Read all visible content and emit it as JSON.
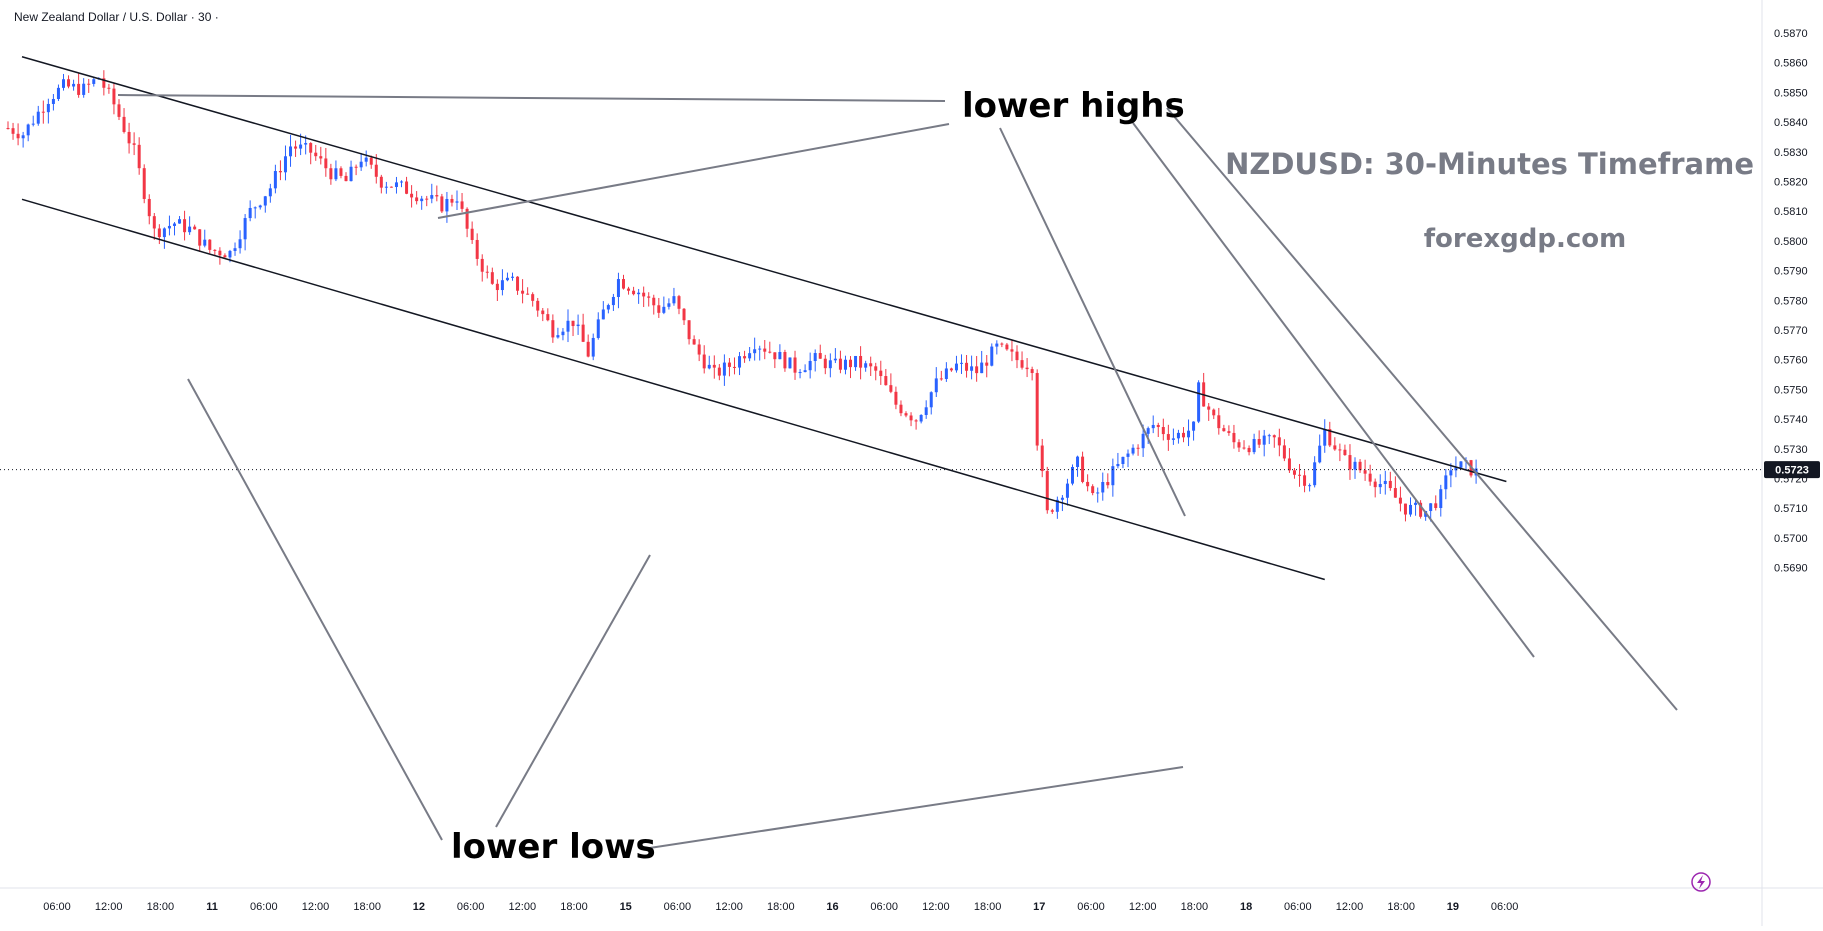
{
  "header": {
    "symbol_title": "New Zealand Dollar / U.S. Dollar · 30 ·"
  },
  "annotations": {
    "lower_highs": "lower highs",
    "lower_lows": "lower lows",
    "watermark_title": "NZDUSD: 30-Minutes Timeframe",
    "watermark_site": "forexgdp.com"
  },
  "price_badge": "0.5723",
  "colors": {
    "up": "#2962ff",
    "down": "#f23645",
    "trendline": "#131722",
    "annotation_line": "#787b86",
    "watermark": "#787b86"
  },
  "chart_data": {
    "type": "candlestick",
    "title": "New Zealand Dollar / U.S. Dollar · 30 ·",
    "y_range": [
      0.5685,
      0.5875
    ],
    "y_ticks": [
      "0.5870",
      "0.5860",
      "0.5850",
      "0.5840",
      "0.5830",
      "0.5820",
      "0.5810",
      "0.5800",
      "0.5790",
      "0.5780",
      "0.5770",
      "0.5760",
      "0.5750",
      "0.5740",
      "0.5730",
      "0.5720",
      "0.5710",
      "0.5700",
      "0.5690"
    ],
    "x_ticks": [
      "06:00",
      "12:00",
      "18:00",
      "11",
      "06:00",
      "12:00",
      "18:00",
      "12",
      "06:00",
      "12:00",
      "18:00",
      "15",
      "06:00",
      "12:00",
      "18:00",
      "16",
      "06:00",
      "12:00",
      "18:00",
      "17",
      "06:00",
      "12:00",
      "18:00",
      "18",
      "06:00",
      "12:00",
      "18:00",
      "19",
      "06:00"
    ],
    "last_price": 0.5723,
    "close_path": [
      {
        "t": 0,
        "p": 0.5838
      },
      {
        "t": 3,
        "p": 0.5836
      },
      {
        "t": 8,
        "p": 0.5848
      },
      {
        "t": 11,
        "p": 0.5852
      },
      {
        "t": 15,
        "p": 0.5851
      },
      {
        "t": 18,
        "p": 0.5855
      },
      {
        "t": 21,
        "p": 0.5846
      },
      {
        "t": 25,
        "p": 0.583
      },
      {
        "t": 29,
        "p": 0.5803
      },
      {
        "t": 33,
        "p": 0.5806
      },
      {
        "t": 36,
        "p": 0.5804
      },
      {
        "t": 40,
        "p": 0.5797
      },
      {
        "t": 44,
        "p": 0.5796
      },
      {
        "t": 48,
        "p": 0.581
      },
      {
        "t": 52,
        "p": 0.5818
      },
      {
        "t": 56,
        "p": 0.5832
      },
      {
        "t": 60,
        "p": 0.583
      },
      {
        "t": 64,
        "p": 0.5823
      },
      {
        "t": 67,
        "p": 0.582
      },
      {
        "t": 70,
        "p": 0.5828
      },
      {
        "t": 74,
        "p": 0.582
      },
      {
        "t": 78,
        "p": 0.5818
      },
      {
        "t": 82,
        "p": 0.5815
      },
      {
        "t": 86,
        "p": 0.5812
      },
      {
        "t": 89,
        "p": 0.5815
      },
      {
        "t": 92,
        "p": 0.5798
      },
      {
        "t": 96,
        "p": 0.5785
      },
      {
        "t": 100,
        "p": 0.5786
      },
      {
        "t": 104,
        "p": 0.578
      },
      {
        "t": 108,
        "p": 0.577
      },
      {
        "t": 112,
        "p": 0.5773
      },
      {
        "t": 115,
        "p": 0.5762
      },
      {
        "t": 118,
        "p": 0.5776
      },
      {
        "t": 121,
        "p": 0.5787
      },
      {
        "t": 125,
        "p": 0.5783
      },
      {
        "t": 129,
        "p": 0.5777
      },
      {
        "t": 132,
        "p": 0.578
      },
      {
        "t": 136,
        "p": 0.5764
      },
      {
        "t": 140,
        "p": 0.5755
      },
      {
        "t": 144,
        "p": 0.5759
      },
      {
        "t": 148,
        "p": 0.5766
      },
      {
        "t": 152,
        "p": 0.5762
      },
      {
        "t": 156,
        "p": 0.5757
      },
      {
        "t": 160,
        "p": 0.576
      },
      {
        "t": 164,
        "p": 0.5758
      },
      {
        "t": 168,
        "p": 0.5759
      },
      {
        "t": 172,
        "p": 0.5756
      },
      {
        "t": 176,
        "p": 0.5745
      },
      {
        "t": 180,
        "p": 0.574
      },
      {
        "t": 184,
        "p": 0.5752
      },
      {
        "t": 188,
        "p": 0.5758
      },
      {
        "t": 192,
        "p": 0.5756
      },
      {
        "t": 196,
        "p": 0.5764
      },
      {
        "t": 200,
        "p": 0.576
      },
      {
        "t": 203,
        "p": 0.5758
      },
      {
        "t": 204,
        "p": 0.5733
      },
      {
        "t": 206,
        "p": 0.5708
      },
      {
        "t": 209,
        "p": 0.5716
      },
      {
        "t": 212,
        "p": 0.5725
      },
      {
        "t": 215,
        "p": 0.5713
      },
      {
        "t": 219,
        "p": 0.5722
      },
      {
        "t": 223,
        "p": 0.573
      },
      {
        "t": 227,
        "p": 0.5738
      },
      {
        "t": 231,
        "p": 0.5734
      },
      {
        "t": 235,
        "p": 0.5737
      },
      {
        "t": 236,
        "p": 0.575
      },
      {
        "t": 239,
        "p": 0.574
      },
      {
        "t": 243,
        "p": 0.5732
      },
      {
        "t": 247,
        "p": 0.5731
      },
      {
        "t": 251,
        "p": 0.5733
      },
      {
        "t": 255,
        "p": 0.5722
      },
      {
        "t": 258,
        "p": 0.5719
      },
      {
        "t": 261,
        "p": 0.5736
      },
      {
        "t": 265,
        "p": 0.5726
      },
      {
        "t": 269,
        "p": 0.5722
      },
      {
        "t": 273,
        "p": 0.5717
      },
      {
        "t": 277,
        "p": 0.571
      },
      {
        "t": 281,
        "p": 0.5709
      },
      {
        "t": 284,
        "p": 0.5714
      },
      {
        "t": 286,
        "p": 0.5724
      },
      {
        "t": 289,
        "p": 0.5724
      },
      {
        "t": 291,
        "p": 0.5722
      }
    ],
    "channel_upper": [
      [
        0,
        0.5862
      ],
      [
        297,
        0.5719
      ]
    ],
    "channel_lower": [
      [
        0,
        0.5814
      ],
      [
        261,
        0.5686
      ]
    ],
    "grid": false
  }
}
